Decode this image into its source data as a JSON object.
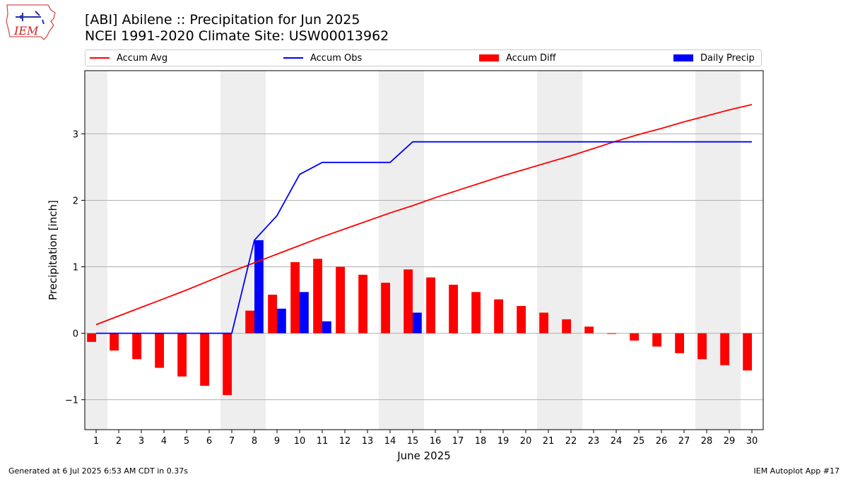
{
  "header": {
    "title_line1": "[ABI] Abilene :: Precipitation for Jun 2025",
    "title_line2": "NCEI 1991-2020 Climate Site: USW00013962",
    "logo_text": "IEM"
  },
  "footer": {
    "left": "Generated at 6 Jul 2025 6:53 AM CDT in 0.37s",
    "right": "IEM Autoplot App #17"
  },
  "colors": {
    "accum_avg": "#ff0000",
    "accum_obs": "#0000ff",
    "accum_diff": "#ff0000",
    "daily_precip": "#0000ff",
    "weekend_shade": "#eeeeee",
    "grid": "#b0b0b0"
  },
  "chart_data": {
    "type": "bar",
    "xlabel": "June 2025",
    "ylabel": "Precipitation [inch]",
    "xlim": [
      0.5,
      30.5
    ],
    "ylim": [
      -1.45,
      3.95
    ],
    "x": [
      1,
      2,
      3,
      4,
      5,
      6,
      7,
      8,
      9,
      10,
      11,
      12,
      13,
      14,
      15,
      16,
      17,
      18,
      19,
      20,
      21,
      22,
      23,
      24,
      25,
      26,
      27,
      28,
      29,
      30
    ],
    "x_tick_labels": [
      "1",
      "2",
      "3",
      "4",
      "5",
      "6",
      "7",
      "8",
      "9",
      "10",
      "11",
      "12",
      "13",
      "14",
      "15",
      "16",
      "17",
      "18",
      "19",
      "20",
      "21",
      "22",
      "23",
      "24",
      "25",
      "26",
      "27",
      "28",
      "29",
      "30"
    ],
    "y_ticks": [
      -1,
      0,
      1,
      2,
      3
    ],
    "y_tick_labels": [
      "−1",
      "0",
      "1",
      "2",
      "3"
    ],
    "grid": "horizontal",
    "legend_position": "top",
    "weekend_days": [
      1,
      7,
      8,
      14,
      15,
      21,
      22,
      28,
      29
    ],
    "series": [
      {
        "name": "Accum Avg",
        "kind": "line",
        "values": [
          0.13,
          0.26,
          0.39,
          0.52,
          0.65,
          0.79,
          0.93,
          1.06,
          1.19,
          1.32,
          1.45,
          1.57,
          1.69,
          1.81,
          1.92,
          2.04,
          2.15,
          2.26,
          2.37,
          2.47,
          2.57,
          2.67,
          2.78,
          2.89,
          2.99,
          3.08,
          3.18,
          3.27,
          3.36,
          3.44
        ]
      },
      {
        "name": "Accum Obs",
        "kind": "line",
        "values": [
          0,
          0,
          0,
          0,
          0,
          0,
          0,
          1.4,
          1.77,
          2.39,
          2.57,
          2.57,
          2.57,
          2.57,
          2.88,
          2.88,
          2.88,
          2.88,
          2.88,
          2.88,
          2.88,
          2.88,
          2.88,
          2.88,
          2.88,
          2.88,
          2.88,
          2.88,
          2.88,
          2.88
        ]
      },
      {
        "name": "Accum Diff",
        "kind": "bar",
        "values": [
          -0.13,
          -0.26,
          -0.39,
          -0.52,
          -0.65,
          -0.79,
          -0.93,
          0.34,
          0.58,
          1.07,
          1.12,
          1.0,
          0.88,
          0.76,
          0.96,
          0.84,
          0.73,
          0.62,
          0.51,
          0.41,
          0.31,
          0.21,
          0.1,
          -0.01,
          -0.11,
          -0.2,
          -0.3,
          -0.39,
          -0.48,
          -0.56
        ]
      },
      {
        "name": "Daily Precip",
        "kind": "bar",
        "values": [
          0,
          0,
          0,
          0,
          0,
          0,
          0,
          1.4,
          0.37,
          0.62,
          0.18,
          0,
          0,
          0,
          0.31,
          0,
          0,
          0,
          0,
          0,
          0,
          0,
          0,
          0,
          0,
          0,
          0,
          0,
          0,
          0
        ]
      }
    ]
  }
}
